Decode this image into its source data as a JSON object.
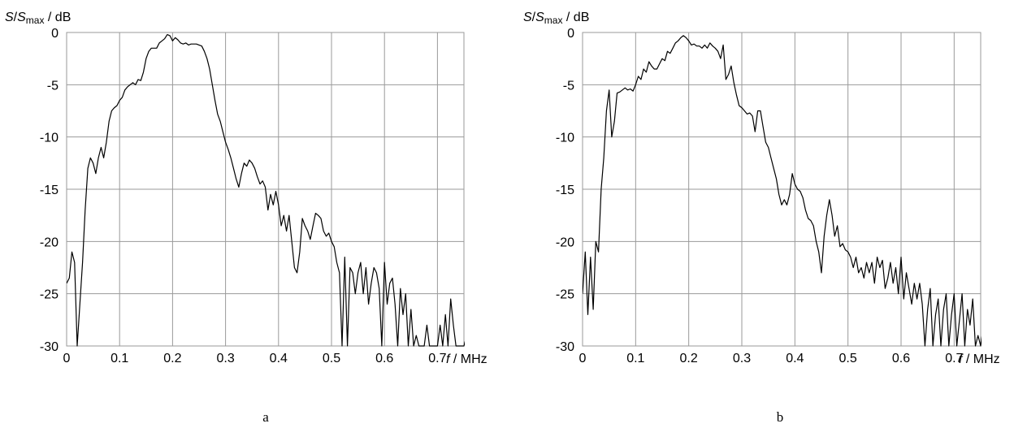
{
  "chart_data": [
    {
      "type": "line",
      "panel_label": "a",
      "y_axis_label": {
        "S": "S",
        "slash": "/",
        "Smax": "S",
        "sub": "max",
        "unit": " / dB"
      },
      "x_axis_label": {
        "f": "f",
        "unit": " / MHz"
      },
      "xlim": [
        0,
        0.75
      ],
      "ylim": [
        -30,
        0
      ],
      "x_ticks": [
        "0",
        "0.1",
        "0.2",
        "0.3",
        "0.4",
        "0.5",
        "0.6",
        "0.7"
      ],
      "y_ticks": [
        "0",
        "-5",
        "-10",
        "-15",
        "-20",
        "-25",
        "-30"
      ],
      "grid": true,
      "line_color": "#000000",
      "series": [
        {
          "x": [
            0,
            0.005,
            0.01,
            0.015,
            0.02,
            0.025,
            0.03,
            0.035,
            0.04,
            0.045,
            0.05,
            0.055,
            0.06,
            0.065,
            0.07,
            0.075,
            0.08,
            0.085,
            0.09,
            0.095,
            0.1,
            0.105,
            0.11,
            0.115,
            0.12,
            0.125,
            0.13,
            0.135,
            0.14,
            0.145,
            0.15,
            0.155,
            0.16,
            0.165,
            0.17,
            0.175,
            0.18,
            0.185,
            0.19,
            0.195,
            0.2,
            0.205,
            0.21,
            0.215,
            0.22,
            0.225,
            0.23,
            0.235,
            0.24,
            0.245,
            0.25,
            0.255,
            0.26,
            0.265,
            0.27,
            0.275,
            0.28,
            0.285,
            0.29,
            0.295,
            0.3,
            0.305,
            0.31,
            0.315,
            0.32,
            0.325,
            0.33,
            0.335,
            0.34,
            0.345,
            0.35,
            0.355,
            0.36,
            0.365,
            0.37,
            0.375,
            0.38,
            0.385,
            0.39,
            0.395,
            0.4,
            0.405,
            0.41,
            0.415,
            0.42,
            0.425,
            0.43,
            0.435,
            0.44,
            0.445,
            0.45,
            0.455,
            0.46,
            0.465,
            0.47,
            0.475,
            0.48,
            0.485,
            0.49,
            0.495,
            0.5,
            0.505,
            0.51,
            0.515,
            0.52,
            0.525,
            0.53,
            0.535,
            0.54,
            0.545,
            0.55,
            0.555,
            0.56,
            0.565,
            0.57,
            0.575,
            0.58,
            0.585,
            0.59,
            0.595,
            0.6,
            0.605,
            0.61,
            0.615,
            0.62,
            0.625,
            0.63,
            0.635,
            0.64,
            0.645,
            0.65,
            0.655,
            0.66,
            0.665,
            0.67,
            0.675,
            0.68,
            0.685,
            0.69,
            0.695,
            0.7,
            0.705,
            0.71,
            0.715,
            0.72,
            0.725,
            0.73,
            0.735,
            0.74,
            0.745,
            0.75,
            0.755,
            0.76,
            0.765,
            0.77
          ],
          "y": [
            -24,
            -23.5,
            -21,
            -22,
            -30,
            -26,
            -22,
            -17,
            -13,
            -12,
            -12.5,
            -13.5,
            -12,
            -11,
            -12,
            -10.5,
            -8.5,
            -7.5,
            -7.2,
            -7,
            -6.5,
            -6.2,
            -5.5,
            -5.2,
            -5,
            -4.8,
            -5,
            -4.5,
            -4.6,
            -3.8,
            -2.5,
            -1.8,
            -1.5,
            -1.5,
            -1.5,
            -1,
            -0.8,
            -0.6,
            -0.2,
            -0.3,
            -0.8,
            -0.5,
            -0.7,
            -1,
            -1.1,
            -1,
            -1.2,
            -1.1,
            -1.1,
            -1.1,
            -1.2,
            -1.3,
            -1.8,
            -2.5,
            -3.5,
            -5,
            -6.5,
            -7.8,
            -8.5,
            -9.5,
            -10.5,
            -11.2,
            -12,
            -13,
            -14,
            -14.8,
            -13.5,
            -12.5,
            -12.8,
            -12.2,
            -12.5,
            -13,
            -13.8,
            -14.5,
            -14.2,
            -14.8,
            -17,
            -15.5,
            -16.5,
            -15.2,
            -16.5,
            -18.5,
            -17.5,
            -19,
            -17.5,
            -20,
            -22.5,
            -23,
            -21,
            -17.8,
            -18.5,
            -19,
            -19.8,
            -18.5,
            -17.3,
            -17.5,
            -17.8,
            -19,
            -19.5,
            -19.2,
            -20,
            -20.5,
            -22,
            -23,
            -30,
            -21.5,
            -30,
            -22.5,
            -23,
            -25,
            -23,
            -22,
            -25,
            -22.5,
            -26,
            -24,
            -22.5,
            -23,
            -24.5,
            -30,
            -22,
            -26,
            -24,
            -23.5,
            -26,
            -30,
            -24.5,
            -27,
            -25,
            -30,
            -26.5,
            -30,
            -29,
            -30,
            -30,
            -30,
            -28,
            -30,
            -30,
            -30,
            -30,
            -28,
            -30,
            -27,
            -30,
            -25.5,
            -28,
            -30,
            -30,
            -30,
            -30,
            -29,
            -27,
            -30,
            -30
          ]
        }
      ]
    },
    {
      "type": "line",
      "panel_label": "b",
      "y_axis_label": {
        "S": "S",
        "slash": "/",
        "Smax": "S",
        "sub": "max",
        "unit": " / dB"
      },
      "x_axis_label": {
        "f": "f",
        "unit": " / MHz"
      },
      "xlim": [
        0,
        0.75
      ],
      "ylim": [
        -30,
        0
      ],
      "x_ticks": [
        "0",
        "0.1",
        "0.2",
        "0.3",
        "0.4",
        "0.5",
        "0.6",
        "0.7"
      ],
      "y_ticks": [
        "0",
        "-5",
        "-10",
        "-15",
        "-20",
        "-25",
        "-30"
      ],
      "grid": true,
      "line_color": "#000000",
      "series": [
        {
          "x": [
            0,
            0.005,
            0.01,
            0.015,
            0.02,
            0.025,
            0.03,
            0.035,
            0.04,
            0.045,
            0.05,
            0.055,
            0.06,
            0.065,
            0.07,
            0.075,
            0.08,
            0.085,
            0.09,
            0.095,
            0.1,
            0.105,
            0.11,
            0.115,
            0.12,
            0.125,
            0.13,
            0.135,
            0.14,
            0.145,
            0.15,
            0.155,
            0.16,
            0.165,
            0.17,
            0.175,
            0.18,
            0.185,
            0.19,
            0.195,
            0.2,
            0.205,
            0.21,
            0.215,
            0.22,
            0.225,
            0.23,
            0.235,
            0.24,
            0.245,
            0.25,
            0.255,
            0.26,
            0.265,
            0.27,
            0.275,
            0.28,
            0.285,
            0.29,
            0.295,
            0.3,
            0.305,
            0.31,
            0.315,
            0.32,
            0.325,
            0.33,
            0.335,
            0.34,
            0.345,
            0.35,
            0.355,
            0.36,
            0.365,
            0.37,
            0.375,
            0.38,
            0.385,
            0.39,
            0.395,
            0.4,
            0.405,
            0.41,
            0.415,
            0.42,
            0.425,
            0.43,
            0.435,
            0.44,
            0.445,
            0.45,
            0.455,
            0.46,
            0.465,
            0.47,
            0.475,
            0.48,
            0.485,
            0.49,
            0.495,
            0.5,
            0.505,
            0.51,
            0.515,
            0.52,
            0.525,
            0.53,
            0.535,
            0.54,
            0.545,
            0.55,
            0.555,
            0.56,
            0.565,
            0.57,
            0.575,
            0.58,
            0.585,
            0.59,
            0.595,
            0.6,
            0.605,
            0.61,
            0.615,
            0.62,
            0.625,
            0.63,
            0.635,
            0.64,
            0.645,
            0.65,
            0.655,
            0.66,
            0.665,
            0.67,
            0.675,
            0.68,
            0.685,
            0.69,
            0.695,
            0.7,
            0.705,
            0.71,
            0.715,
            0.72,
            0.725,
            0.73,
            0.735,
            0.74,
            0.745,
            0.75,
            0.755,
            0.76,
            0.765,
            0.77
          ],
          "y": [
            -25,
            -21,
            -27,
            -21.5,
            -26.5,
            -20,
            -21,
            -15,
            -12,
            -7.5,
            -5.5,
            -10,
            -8.5,
            -5.8,
            -5.7,
            -5.5,
            -5.3,
            -5.5,
            -5.4,
            -5.6,
            -5,
            -4.2,
            -4.5,
            -3.5,
            -3.8,
            -2.8,
            -3.2,
            -3.5,
            -3.5,
            -3,
            -2.5,
            -2.7,
            -1.8,
            -2,
            -1.5,
            -1,
            -0.8,
            -0.5,
            -0.3,
            -0.5,
            -0.8,
            -1.2,
            -1.1,
            -1.3,
            -1.3,
            -1.5,
            -1.2,
            -1.5,
            -1,
            -1.3,
            -1.5,
            -1.8,
            -2.5,
            -1.2,
            -4.5,
            -4,
            -3.2,
            -4.8,
            -6,
            -7,
            -7.2,
            -7.5,
            -7.8,
            -7.7,
            -8,
            -9.5,
            -7.5,
            -7.5,
            -9,
            -10.5,
            -11,
            -12,
            -13,
            -14,
            -15.5,
            -16.5,
            -16,
            -16.5,
            -15.5,
            -13.5,
            -14.5,
            -15,
            -15.2,
            -15.8,
            -17,
            -17.8,
            -18,
            -18.5,
            -20,
            -21,
            -23,
            -19.5,
            -17.5,
            -16,
            -17.5,
            -19.5,
            -18.5,
            -20.5,
            -20.2,
            -20.8,
            -21,
            -21.5,
            -22.5,
            -21.5,
            -23,
            -22.5,
            -23.5,
            -22,
            -23,
            -22,
            -24,
            -21.5,
            -22.5,
            -21.8,
            -24.5,
            -23.5,
            -22,
            -24,
            -22.5,
            -25,
            -21.5,
            -25.5,
            -23,
            -24.5,
            -26,
            -24,
            -25.5,
            -24,
            -26,
            -30,
            -26.5,
            -24.5,
            -30,
            -27,
            -25.5,
            -30,
            -26.5,
            -25,
            -30,
            -27,
            -25,
            -30,
            -27.5,
            -25,
            -30,
            -26.5,
            -28,
            -25.5,
            -30,
            -29,
            -30,
            -28,
            -27.5,
            -28,
            -28
          ]
        }
      ]
    }
  ]
}
